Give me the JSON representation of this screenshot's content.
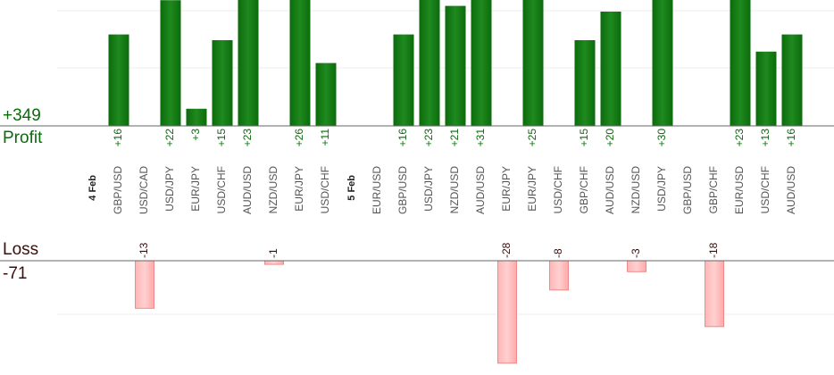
{
  "summary": {
    "profit_total": "+349",
    "profit_label": "Profit",
    "loss_label": "Loss",
    "loss_total": "-71"
  },
  "colors": {
    "profit_bar": "#0b6b0b",
    "profit_bar_light": "#1f8a1f",
    "loss_bar": "#ffb6b6",
    "loss_bar_border": "#f08a8a",
    "profit_text": "#0b6b0b",
    "loss_text": "#3d0c0c",
    "axis": "#666666",
    "grid": "#eeeeee"
  },
  "chart_data": {
    "type": "bar",
    "grid": true,
    "groups": [
      {
        "date": "4 Feb",
        "trades": [
          {
            "pair": "GBP/USD",
            "value": 16,
            "label": "+16"
          },
          {
            "pair": "USD/CAD",
            "value": -13,
            "label": "-13"
          },
          {
            "pair": "USD/JPY",
            "value": 22,
            "label": "+22"
          },
          {
            "pair": "EUR/JPY",
            "value": 3,
            "label": "+3"
          },
          {
            "pair": "USD/CHF",
            "value": 15,
            "label": "+15"
          },
          {
            "pair": "AUD/USD",
            "value": 23,
            "label": "+23"
          },
          {
            "pair": "NZD/USD",
            "value": -1,
            "label": "-1"
          },
          {
            "pair": "EUR/JPY",
            "value": 26,
            "label": "+26"
          },
          {
            "pair": "USD/CHF",
            "value": 11,
            "label": "+11"
          }
        ]
      },
      {
        "date": "5 Feb",
        "trades": [
          {
            "pair": "EUR/USD",
            "value": null,
            "label": ""
          },
          {
            "pair": "GBP/USD",
            "value": 16,
            "label": "+16"
          },
          {
            "pair": "USD/JPY",
            "value": 23,
            "label": "+23"
          },
          {
            "pair": "NZD/USD",
            "value": 21,
            "label": "+21"
          },
          {
            "pair": "AUD/USD",
            "value": 31,
            "label": "+31"
          },
          {
            "pair": "EUR/JPY",
            "value": -28,
            "label": "-28"
          },
          {
            "pair": "EUR/JPY",
            "value": 25,
            "label": "+25"
          },
          {
            "pair": "USD/CHF",
            "value": -8,
            "label": "-8"
          },
          {
            "pair": "GBP/CHF",
            "value": 15,
            "label": "+15"
          },
          {
            "pair": "AUD/USD",
            "value": 20,
            "label": "+20"
          },
          {
            "pair": "NZD/USD",
            "value": -3,
            "label": "-3"
          },
          {
            "pair": "USD/JPY",
            "value": 30,
            "label": "+30"
          },
          {
            "pair": "GBP/USD",
            "value": null,
            "label": ""
          },
          {
            "pair": "GBP/CHF",
            "value": -18,
            "label": "-18"
          },
          {
            "pair": "EUR/USD",
            "value": 23,
            "label": "+23"
          },
          {
            "pair": "USD/CHF",
            "value": 13,
            "label": "+13"
          },
          {
            "pair": "AUD/USD",
            "value": 16,
            "label": "+16"
          }
        ]
      }
    ]
  }
}
